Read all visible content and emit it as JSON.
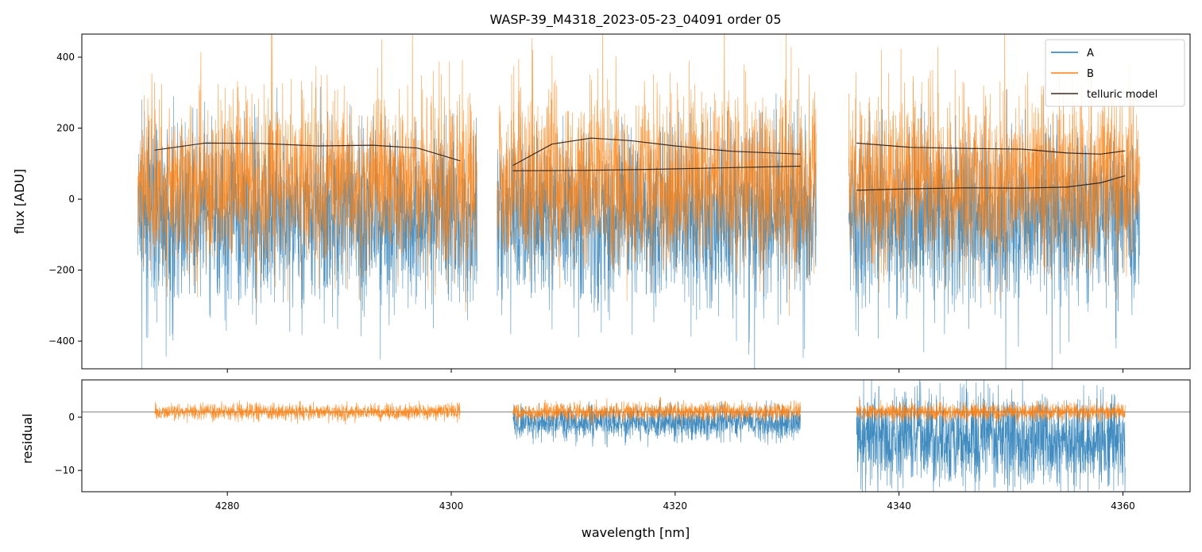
{
  "chart_data": [
    {
      "type": "line",
      "panel": "flux",
      "title": "WASP-39_M4318_2023-05-23_04091  order 05",
      "xlabel": "",
      "ylabel": "flux [ADU]",
      "xlim": [
        4267,
        4366
      ],
      "ylim": [
        -478,
        465
      ],
      "xticks": [
        4280,
        4300,
        4320,
        4340,
        4360
      ],
      "yticks": [
        -400,
        -200,
        0,
        200,
        400
      ],
      "ytick_labels": [
        "−400",
        "−200",
        "0",
        "200",
        "400"
      ],
      "grid": false,
      "legend_position": "top-right",
      "segments": [
        [
          4272.0,
          4302.3
        ],
        [
          4304.1,
          4332.6
        ],
        [
          4335.5,
          4361.5
        ]
      ],
      "series": [
        {
          "name": "A",
          "color": "#1f77b4",
          "description_values": {
            "typical_center": -40,
            "typical_low": -420,
            "typical_high": 250
          }
        },
        {
          "name": "B",
          "color": "#ff7f0e",
          "description_values": {
            "typical_center": 40,
            "typical_low": -250,
            "typical_high": 465
          }
        },
        {
          "name": "telluric model",
          "color": "#3a2a20",
          "curves": [
            {
              "x": [
                4273.5,
                4278,
                4283,
                4288,
                4293,
                4297,
                4300.8
              ],
              "y": [
                138,
                158,
                157,
                150,
                152,
                144,
                108
              ]
            },
            {
              "x": [
                4305.5,
                4309,
                4312.5,
                4316,
                4320,
                4325,
                4331.2
              ],
              "y": [
                95,
                155,
                172,
                165,
                150,
                135,
                127
              ]
            },
            {
              "x": [
                4305.5,
                4312,
                4318,
                4324,
                4331.2
              ],
              "y": [
                80,
                81,
                84,
                88,
                93
              ]
            },
            {
              "x": [
                4336.2,
                4341,
                4346,
                4351,
                4355,
                4358,
                4360.2
              ],
              "y": [
                158,
                146,
                143,
                141,
                130,
                127,
                136
              ]
            },
            {
              "x": [
                4336.2,
                4341,
                4346,
                4351,
                4355,
                4358,
                4360.2
              ],
              "y": [
                25,
                29,
                32,
                31,
                34,
                46,
                66
              ]
            }
          ]
        }
      ]
    },
    {
      "type": "line",
      "panel": "residual",
      "title": "",
      "xlabel": "wavelength [nm]",
      "ylabel": "residual",
      "xlim": [
        4267,
        4366
      ],
      "ylim": [
        -14,
        7
      ],
      "xticks": [
        4280,
        4300,
        4320,
        4340,
        4360
      ],
      "xtick_labels": [
        "4280",
        "4300",
        "4320",
        "4340",
        "4360"
      ],
      "yticks": [
        -10,
        0
      ],
      "ytick_labels": [
        "−10",
        "0"
      ],
      "reference_line": 1,
      "grid": false,
      "segments": [
        [
          4273.5,
          4300.8
        ],
        [
          4305.5,
          4331.2
        ],
        [
          4336.2,
          4360.2
        ]
      ],
      "series": [
        {
          "name": "A",
          "color": "#1f77b4",
          "segment_centers": [
            null,
            -1,
            -4
          ],
          "segment_spreads": [
            0,
            3.5,
            10
          ]
        },
        {
          "name": "B",
          "color": "#ff7f0e",
          "segment_centers": [
            1,
            1,
            1
          ],
          "segment_spreads": [
            1.8,
            2,
            2
          ]
        }
      ]
    }
  ]
}
